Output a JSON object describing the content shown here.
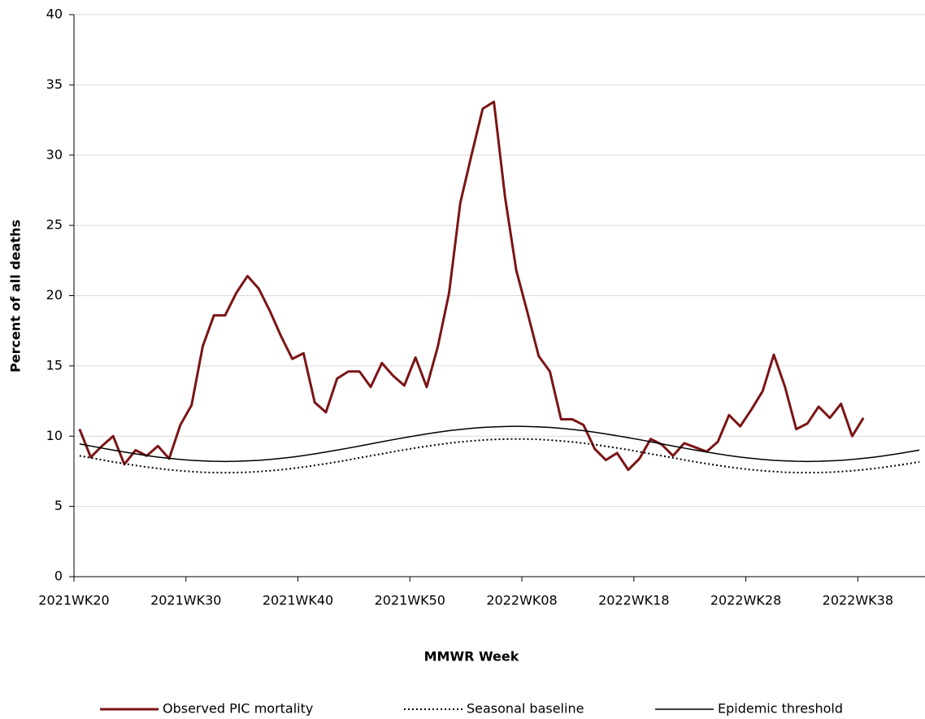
{
  "chart_data": {
    "type": "line",
    "x_label": "MMWR Week",
    "y_label": "Percent of all deaths",
    "categories": [
      "2021WK20",
      null,
      null,
      null,
      null,
      null,
      null,
      null,
      null,
      null,
      "2021WK30",
      null,
      null,
      null,
      null,
      null,
      null,
      null,
      null,
      null,
      "2021WK40",
      null,
      null,
      null,
      null,
      null,
      null,
      null,
      null,
      null,
      "2021WK50",
      null,
      null,
      null,
      null,
      null,
      null,
      null,
      null,
      null,
      "2022WK08",
      null,
      null,
      null,
      null,
      null,
      null,
      null,
      null,
      null,
      "2022WK18",
      null,
      null,
      null,
      null,
      null,
      null,
      null,
      null,
      null,
      "2022WK28",
      null,
      null,
      null,
      null,
      null,
      null,
      null,
      null,
      null,
      "2022WK38",
      null,
      null,
      null,
      null,
      null
    ],
    "series": [
      {
        "name": "Observed PIC mortality",
        "color": "#7b1416",
        "line_style": "solid",
        "line_width": 3,
        "values": [
          10.5,
          8.5,
          9.3,
          10,
          8,
          9,
          8.6,
          9.3,
          8.4,
          10.8,
          12.2,
          16.4,
          18.6,
          18.6,
          20.2,
          21.4,
          20.5,
          18.9,
          17.1,
          15.5,
          15.9,
          12.4,
          11.7,
          14.1,
          14.6,
          14.6,
          13.5,
          15.2,
          14.3,
          13.6,
          15.6,
          13.5,
          16.4,
          20.2,
          26.6,
          30,
          33.3,
          33.8,
          27,
          21.8,
          18.8,
          15.7,
          14.6,
          11.2,
          11.2,
          10.8,
          9.1,
          8.3,
          8.8,
          7.6,
          8.4,
          9.8,
          9.4,
          8.6,
          9.5,
          9.2,
          8.9,
          9.6,
          11.5,
          10.7,
          11.9,
          13.2,
          15.8,
          13.5,
          10.5,
          10.9,
          12.1,
          11.3,
          12.3,
          10,
          11.3,
          null,
          null,
          null,
          null,
          null
        ]
      },
      {
        "name": "Seasonal baseline",
        "color": "#000000",
        "line_style": "dotted",
        "line_width": 2,
        "values": [
          8.6,
          8.46,
          8.31,
          8.17,
          8.04,
          7.92,
          7.8,
          7.7,
          7.61,
          7.54,
          7.48,
          7.43,
          7.41,
          7.4,
          7.41,
          7.43,
          7.48,
          7.54,
          7.61,
          7.7,
          7.8,
          7.92,
          8.04,
          8.17,
          8.31,
          8.46,
          8.6,
          8.74,
          8.89,
          9.03,
          9.16,
          9.28,
          9.4,
          9.5,
          9.59,
          9.66,
          9.72,
          9.77,
          9.79,
          9.8,
          9.79,
          9.77,
          9.72,
          9.66,
          9.59,
          9.5,
          9.4,
          9.28,
          9.16,
          9.03,
          8.89,
          8.74,
          8.6,
          8.46,
          8.31,
          8.17,
          8.04,
          7.92,
          7.8,
          7.7,
          7.61,
          7.54,
          7.48,
          7.43,
          7.41,
          7.4,
          7.41,
          7.43,
          7.48,
          7.54,
          7.61,
          7.7,
          7.8,
          7.92,
          8.04,
          8.17
        ]
      },
      {
        "name": "Epidemic threshold",
        "color": "#000000",
        "line_style": "solid",
        "line_width": 1.5,
        "values": [
          9.45,
          9.3,
          9.15,
          9.01,
          8.87,
          8.74,
          8.62,
          8.51,
          8.42,
          8.34,
          8.28,
          8.24,
          8.21,
          8.2,
          8.21,
          8.24,
          8.28,
          8.34,
          8.42,
          8.51,
          8.62,
          8.74,
          8.87,
          9.01,
          9.15,
          9.3,
          9.45,
          9.6,
          9.75,
          9.89,
          10.03,
          10.16,
          10.28,
          10.39,
          10.48,
          10.56,
          10.62,
          10.66,
          10.69,
          10.7,
          10.69,
          10.66,
          10.62,
          10.56,
          10.48,
          10.39,
          10.28,
          10.16,
          10.03,
          9.89,
          9.75,
          9.6,
          9.45,
          9.3,
          9.15,
          9.01,
          8.87,
          8.74,
          8.62,
          8.51,
          8.42,
          8.34,
          8.28,
          8.24,
          8.21,
          8.2,
          8.21,
          8.24,
          8.28,
          8.34,
          8.42,
          8.51,
          8.62,
          8.74,
          8.87,
          9.01
        ]
      }
    ],
    "ylim": [
      0,
      40
    ],
    "yticks": [
      0,
      5,
      10,
      15,
      20,
      25,
      30,
      35,
      40
    ],
    "grid": true,
    "legend": "bottom"
  }
}
